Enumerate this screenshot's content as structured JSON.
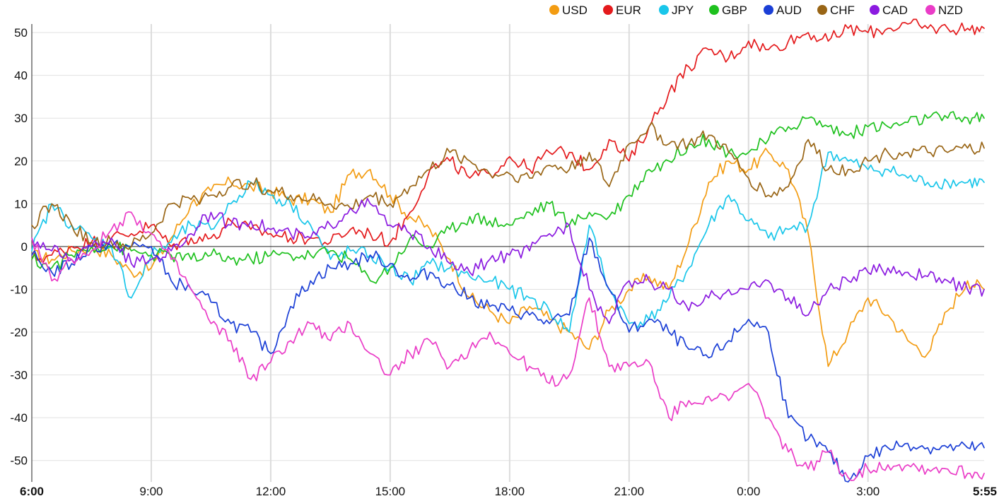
{
  "chart_data": {
    "type": "line",
    "title": "",
    "xlabel": "",
    "ylabel": "",
    "ylim": [
      -55,
      52
    ],
    "y_ticks": [
      50,
      40,
      30,
      20,
      10,
      0,
      -10,
      -20,
      -30,
      -40,
      -50
    ],
    "x_ticks": [
      "6:00",
      "9:00",
      "12:00",
      "15:00",
      "18:00",
      "21:00",
      "0:00",
      "3:00",
      "5:55"
    ],
    "x_start_tick": "6:00",
    "x_end_tick": "5:55",
    "x_unit": "hours from 6:00",
    "x_range": [
      0,
      23.917
    ],
    "grid": true,
    "legend_position": "top-right",
    "series": [
      {
        "name": "USD",
        "color": "#f39c12",
        "x": [
          0,
          0.5,
          1,
          1.5,
          2,
          2.5,
          3,
          3.5,
          4,
          4.5,
          5,
          5.5,
          6,
          6.5,
          7,
          7.5,
          8,
          8.5,
          9,
          9.5,
          10,
          10.5,
          11,
          11.5,
          12,
          12.5,
          13,
          13.5,
          14,
          14.5,
          15,
          15.5,
          16,
          16.5,
          17,
          17.5,
          18,
          18.5,
          19,
          19.5,
          20,
          20.5,
          21,
          21.5,
          22,
          22.5,
          23,
          23.5,
          23.917
        ],
        "y": [
          -2,
          -3,
          -1,
          0,
          -2,
          -6,
          -5,
          2,
          10,
          13,
          15,
          14,
          13,
          11,
          11,
          8,
          17,
          18,
          12,
          7,
          4,
          -3,
          -12,
          -15,
          -18,
          -14,
          -17,
          -20,
          -24,
          -15,
          -10,
          -7,
          -10,
          1,
          15,
          20,
          18,
          22,
          18,
          3,
          -28,
          -20,
          -12,
          -16,
          -22,
          -25,
          -15,
          -8,
          -10
        ]
      },
      {
        "name": "EUR",
        "color": "#e41a1c",
        "x": [
          0,
          0.5,
          1,
          1.5,
          2,
          2.5,
          3,
          3.5,
          4,
          4.5,
          5,
          5.5,
          6,
          6.5,
          7,
          7.5,
          8,
          8.5,
          9,
          9.5,
          10,
          10.5,
          11,
          11.5,
          12,
          12.5,
          13,
          13.5,
          14,
          14.5,
          15,
          15.5,
          16,
          16.5,
          17,
          17.5,
          18,
          18.5,
          19,
          19.5,
          20,
          20.5,
          21,
          21.5,
          22,
          22.5,
          23,
          23.5,
          23.917
        ],
        "y": [
          -3,
          -2,
          0,
          1,
          2,
          3,
          5,
          0,
          2,
          2,
          6,
          4,
          3,
          2,
          2,
          1,
          4,
          3,
          1,
          8,
          18,
          20,
          16,
          17,
          21,
          18,
          22,
          22,
          18,
          25,
          20,
          28,
          36,
          42,
          46,
          44,
          48,
          46,
          48,
          50,
          48,
          51,
          50,
          51,
          52,
          51,
          51,
          51,
          51
        ]
      },
      {
        "name": "JPY",
        "color": "#19c6ea",
        "x": [
          0,
          0.5,
          1,
          1.5,
          2,
          2.5,
          3,
          3.5,
          4,
          4.5,
          5,
          5.5,
          6,
          6.5,
          7,
          7.5,
          8,
          8.5,
          9,
          9.5,
          10,
          10.5,
          11,
          11.5,
          12,
          12.5,
          13,
          13.5,
          14,
          14.5,
          15,
          15.5,
          16,
          16.5,
          17,
          17.5,
          18,
          18.5,
          19,
          19.5,
          20,
          20.5,
          21,
          21.5,
          22,
          22.5,
          23,
          23.5,
          23.917
        ],
        "y": [
          -1,
          10,
          5,
          2,
          0,
          -12,
          -2,
          1,
          5,
          4,
          10,
          15,
          12,
          10,
          5,
          -3,
          -1,
          -2,
          -5,
          -8,
          -4,
          -5,
          -7,
          -8,
          -10,
          -12,
          -15,
          -20,
          5,
          -10,
          -18,
          -17,
          -12,
          -5,
          5,
          12,
          6,
          2,
          4,
          5,
          22,
          20,
          18,
          18,
          16,
          15,
          15,
          15,
          15
        ]
      },
      {
        "name": "GBP",
        "color": "#1ec11e",
        "x": [
          0,
          0.5,
          1,
          1.5,
          2,
          2.5,
          3,
          3.5,
          4,
          4.5,
          5,
          5.5,
          6,
          6.5,
          7,
          7.5,
          8,
          8.5,
          9,
          9.5,
          10,
          10.5,
          11,
          11.5,
          12,
          12.5,
          13,
          13.5,
          14,
          14.5,
          15,
          15.5,
          16,
          16.5,
          17,
          17.5,
          18,
          18.5,
          19,
          19.5,
          20,
          20.5,
          21,
          21.5,
          22,
          22.5,
          23,
          23.5,
          23.917
        ],
        "y": [
          -3,
          -5,
          -2,
          0,
          0,
          -1,
          -2,
          -2,
          -3,
          -2,
          -3,
          -3,
          -2,
          -2,
          -2,
          -1,
          -3,
          -8,
          -5,
          2,
          0,
          4,
          7,
          6,
          5,
          8,
          10,
          5,
          8,
          7,
          12,
          18,
          20,
          24,
          25,
          22,
          22,
          25,
          28,
          30,
          28,
          26,
          28,
          28,
          29,
          30,
          30,
          30,
          30
        ]
      },
      {
        "name": "AUD",
        "color": "#1b3fd6",
        "x": [
          0,
          0.5,
          1,
          1.5,
          2,
          2.5,
          3,
          3.5,
          4,
          4.5,
          5,
          5.5,
          6,
          6.5,
          7,
          7.5,
          8,
          8.5,
          9,
          9.5,
          10,
          10.5,
          11,
          11.5,
          12,
          12.5,
          13,
          13.5,
          14,
          14.5,
          15,
          15.5,
          16,
          16.5,
          17,
          17.5,
          18,
          18.5,
          19,
          19.5,
          20,
          20.5,
          21,
          21.5,
          22,
          22.5,
          23,
          23.5,
          23.917
        ],
        "y": [
          -2,
          -6,
          -4,
          0,
          0,
          0,
          0,
          -8,
          -10,
          -13,
          -18,
          -20,
          -25,
          -14,
          -8,
          -5,
          -4,
          -2,
          -4,
          -8,
          -6,
          -9,
          -12,
          -14,
          -15,
          -16,
          -18,
          -16,
          2,
          -10,
          -20,
          -17,
          -20,
          -24,
          -26,
          -22,
          -17,
          -20,
          -40,
          -45,
          -48,
          -55,
          -49,
          -47,
          -46,
          -47,
          -47,
          -47,
          -47
        ]
      },
      {
        "name": "CHF",
        "color": "#996515",
        "x": [
          0,
          0.5,
          1,
          1.5,
          2,
          2.5,
          3,
          3.5,
          4,
          4.5,
          5,
          5.5,
          6,
          6.5,
          7,
          7.5,
          8,
          8.5,
          9,
          9.5,
          10,
          10.5,
          11,
          11.5,
          12,
          12.5,
          13,
          13.5,
          14,
          14.5,
          15,
          15.5,
          16,
          16.5,
          17,
          17.5,
          18,
          18.5,
          19,
          19.5,
          20,
          20.5,
          21,
          21.5,
          22,
          22.5,
          23,
          23.5,
          23.917
        ],
        "y": [
          5,
          10,
          5,
          1,
          1,
          0,
          3,
          10,
          11,
          12,
          14,
          15,
          13,
          12,
          11,
          10,
          9,
          12,
          10,
          14,
          18,
          22,
          20,
          17,
          17,
          16,
          19,
          18,
          22,
          14,
          24,
          28,
          24,
          24,
          26,
          22,
          16,
          12,
          14,
          25,
          18,
          18,
          20,
          22,
          22,
          22,
          22,
          23,
          23
        ]
      },
      {
        "name": "CAD",
        "color": "#8b1ae0",
        "x": [
          0,
          0.5,
          1,
          1.5,
          2,
          2.5,
          3,
          3.5,
          4,
          4.5,
          5,
          5.5,
          6,
          6.5,
          7,
          7.5,
          8,
          8.5,
          9,
          9.5,
          10,
          10.5,
          11,
          11.5,
          12,
          12.5,
          13,
          13.5,
          14,
          14.5,
          15,
          15.5,
          16,
          16.5,
          17,
          17.5,
          18,
          18.5,
          19,
          19.5,
          20,
          20.5,
          21,
          21.5,
          22,
          22.5,
          23,
          23.5,
          23.917
        ],
        "y": [
          2,
          -1,
          -3,
          0,
          2,
          -4,
          -3,
          -1,
          3,
          8,
          5,
          6,
          4,
          3,
          2,
          5,
          9,
          10,
          5,
          3,
          0,
          -4,
          -6,
          -3,
          -2,
          -1,
          3,
          5,
          -10,
          -18,
          -8,
          -8,
          -10,
          -15,
          -12,
          -10,
          -10,
          -8,
          -12,
          -16,
          -10,
          -8,
          -6,
          -5,
          -6,
          -7,
          -8,
          -10,
          -10
        ]
      },
      {
        "name": "NZD",
        "color": "#ea3cc7",
        "x": [
          0,
          0.5,
          1,
          1.5,
          2,
          2.5,
          3,
          3.5,
          4,
          4.5,
          5,
          5.5,
          6,
          6.5,
          7,
          7.5,
          8,
          8.5,
          9,
          9.5,
          10,
          10.5,
          11,
          11.5,
          12,
          12.5,
          13,
          13.5,
          14,
          14.5,
          15,
          15.5,
          16,
          16.5,
          17,
          17.5,
          18,
          18.5,
          19,
          19.5,
          20,
          20.5,
          21,
          21.5,
          22,
          22.5,
          23,
          23.5,
          23.917
        ],
        "y": [
          2,
          -8,
          -3,
          -1,
          4,
          8,
          3,
          -3,
          -10,
          -18,
          -22,
          -31,
          -27,
          -22,
          -18,
          -22,
          -18,
          -25,
          -30,
          -25,
          -22,
          -28,
          -24,
          -20,
          -25,
          -28,
          -32,
          -30,
          -12,
          -28,
          -28,
          -27,
          -40,
          -36,
          -35,
          -36,
          -32,
          -40,
          -48,
          -52,
          -48,
          -54,
          -52,
          -51,
          -51,
          -52,
          -52,
          -53,
          -53
        ]
      }
    ]
  }
}
